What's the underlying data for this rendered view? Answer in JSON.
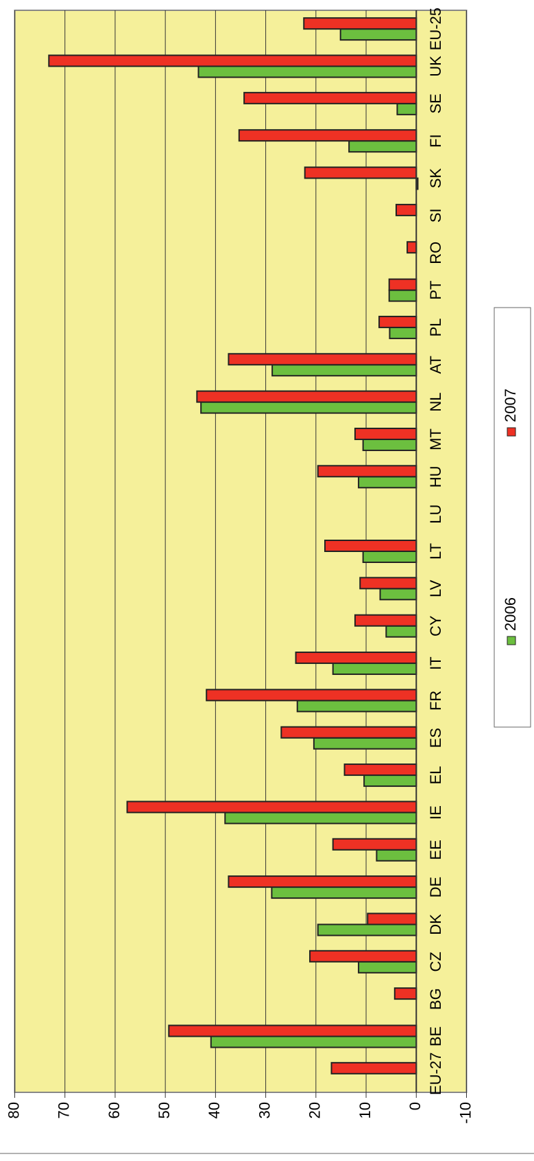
{
  "chart_data": {
    "type": "bar",
    "orientation": "rotated",
    "categories": [
      "EU-27",
      "BE",
      "BG",
      "CZ",
      "DK",
      "DE",
      "EE",
      "IE",
      "EL",
      "ES",
      "FR",
      "IT",
      "CY",
      "LV",
      "LT",
      "LU",
      "HU",
      "MT",
      "NL",
      "AT",
      "PL",
      "PT",
      "RO",
      "SI",
      "SK",
      "FI",
      "SE",
      "UK",
      "EU-25"
    ],
    "series": [
      {
        "name": "2006",
        "color": "#6cbf3f",
        "values": [
          null,
          40.9,
          null,
          11.5,
          19.6,
          28.8,
          7.9,
          38.1,
          10.4,
          20.4,
          23.7,
          16.6,
          6.0,
          7.2,
          10.6,
          null,
          11.5,
          10.6,
          42.9,
          28.7,
          5.3,
          5.4,
          null,
          0,
          -0.3,
          13.4,
          3.8,
          43.4,
          15.1
        ]
      },
      {
        "name": "2007",
        "color": "#ee3124",
        "values": [
          16.9,
          49.3,
          4.3,
          21.2,
          9.7,
          37.4,
          16.6,
          57.6,
          14.3,
          26.9,
          41.8,
          24.0,
          12.2,
          11.2,
          18.2,
          null,
          19.6,
          12.2,
          43.7,
          37.4,
          7.4,
          5.4,
          1.8,
          4.0,
          22.2,
          35.3,
          34.3,
          73.2,
          22.4
        ]
      }
    ],
    "ylim": [
      -10,
      80
    ],
    "yticks": [
      -10,
      0,
      10,
      20,
      30,
      40,
      50,
      60,
      70,
      80
    ],
    "grid": true,
    "background": "#f5f09a"
  }
}
